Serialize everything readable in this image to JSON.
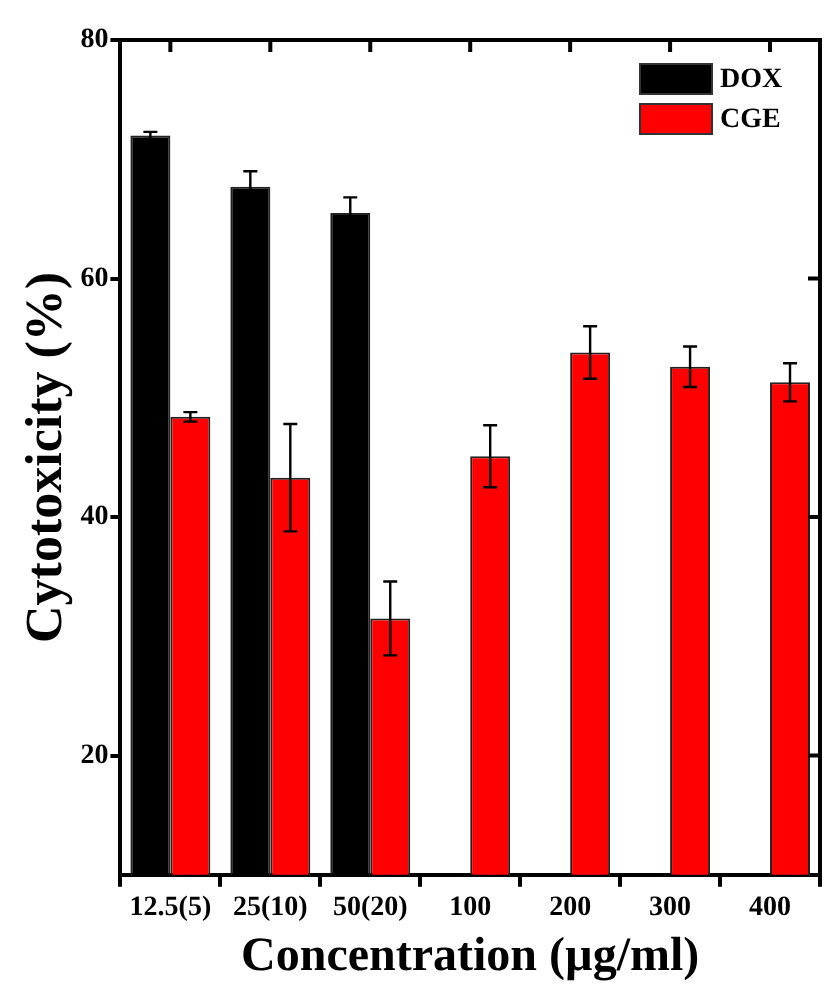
{
  "chart_data": {
    "type": "bar",
    "xlabel": "Concentration (µg/ml)",
    "ylabel": "Cytotoxicity (%)",
    "categories": [
      "12.5(5)",
      "25(10)",
      "50(20)",
      "100",
      "200",
      "300",
      "400"
    ],
    "series": [
      {
        "name": "DOX",
        "color": "#000000",
        "values": [
          72.0,
          67.7,
          65.5,
          null,
          null,
          null,
          null
        ],
        "errors": [
          0.3,
          1.3,
          1.3,
          null,
          null,
          null,
          null
        ]
      },
      {
        "name": "CGE",
        "color": "#ff0000",
        "values": [
          48.4,
          43.3,
          31.5,
          45.1,
          53.8,
          52.6,
          51.3
        ],
        "errors": [
          0.4,
          4.5,
          3.1,
          2.6,
          2.2,
          1.7,
          1.6
        ]
      }
    ],
    "ylim": [
      10,
      80
    ],
    "yticks": [
      20,
      40,
      60,
      80
    ],
    "legend": "top right"
  }
}
